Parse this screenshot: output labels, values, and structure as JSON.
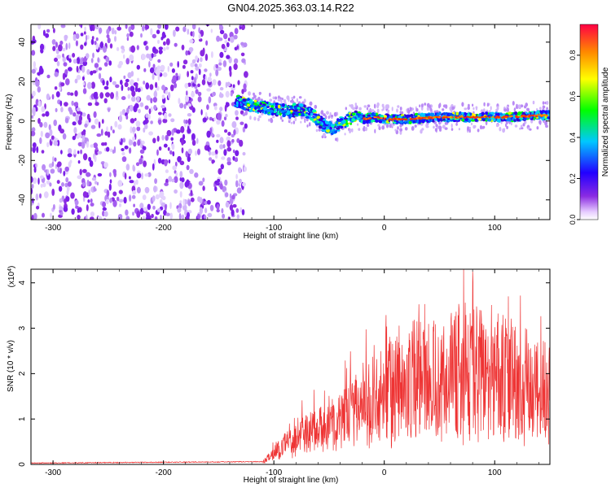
{
  "title": "GN04.2025.363.03.14.R22",
  "chart_data": [
    {
      "type": "heatmap",
      "name": "spectrogram",
      "xlabel": "Height of straight line (km)",
      "ylabel": "Frequency (Hz)",
      "xlim": [
        -320,
        150
      ],
      "ylim": [
        -50,
        49
      ],
      "xticks": [
        -300,
        -200,
        -100,
        0,
        100
      ],
      "yticks": [
        -40,
        -20,
        0,
        20,
        40
      ],
      "signal_track": {
        "x": [
          -135,
          -120,
          -100,
          -85,
          -75,
          -65,
          -55,
          -45,
          -40,
          -35,
          -25,
          -18,
          -10,
          0,
          20,
          50,
          80,
          110,
          150
        ],
        "y": [
          10,
          8,
          6,
          5,
          6,
          3,
          -2,
          -4,
          -1,
          0,
          3,
          1,
          2,
          1,
          1,
          2,
          2,
          2,
          3
        ]
      },
      "noise_region_x": [
        -320,
        -125
      ]
    },
    {
      "type": "colorbar",
      "name": "amplitude-colorbar",
      "label": "Normalized spectral amplitude",
      "range": [
        0.0,
        0.95
      ],
      "ticks": [
        "0.0",
        "0.2",
        "0.4",
        "0.6",
        "0.8"
      ],
      "tick_values": [
        0.0,
        0.2,
        0.4,
        0.6,
        0.8
      ],
      "colormap": [
        "#ffffff",
        "#8a2be2",
        "#2200ff",
        "#00c8ff",
        "#00ff00",
        "#ffff00",
        "#ff8800",
        "#ff0044"
      ]
    },
    {
      "type": "line",
      "name": "snr",
      "xlabel": "Height of straight line (km)",
      "ylabel": "SNR (10 * v/v)",
      "scale_label": "(x10",
      "scale_exp": "4",
      "scale_close": ")",
      "xlim": [
        -320,
        150
      ],
      "ylim": [
        0,
        4.3
      ],
      "xticks": [
        -300,
        -200,
        -100,
        0,
        100
      ],
      "yticks": [
        0,
        1,
        2,
        3,
        4
      ],
      "series": [
        {
          "name": "SNR",
          "color": "#ee3333",
          "envelope_x": [
            -320,
            -110,
            -100,
            -90,
            -80,
            -70,
            -60,
            -50,
            -40,
            -30,
            -20,
            -10,
            0,
            10,
            20,
            30,
            40,
            50,
            60,
            70,
            80,
            90,
            100,
            110,
            120,
            130,
            140,
            150
          ],
          "envelope_y": [
            0.02,
            0.05,
            0.25,
            0.45,
            0.6,
            0.75,
            0.8,
            0.9,
            1.0,
            1.2,
            1.45,
            1.55,
            1.6,
            1.65,
            1.8,
            1.95,
            2.0,
            1.9,
            2.0,
            2.1,
            2.1,
            2.0,
            2.0,
            1.95,
            1.85,
            1.75,
            1.65,
            1.6
          ],
          "peak": {
            "x": 80,
            "y": 4.25
          }
        }
      ]
    }
  ]
}
